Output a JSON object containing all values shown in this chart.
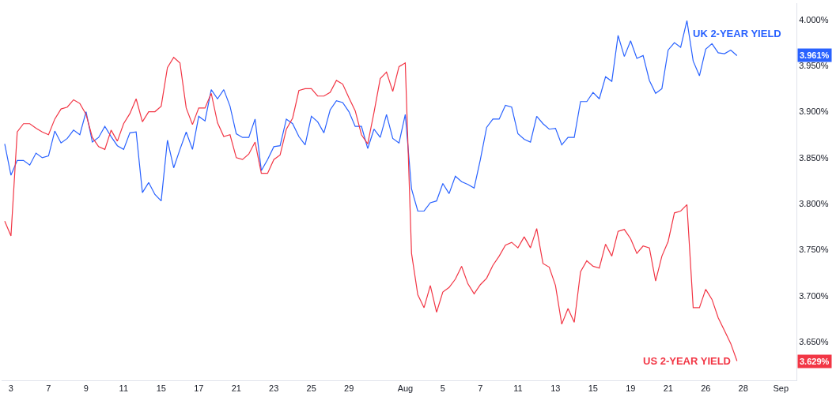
{
  "chart_data": {
    "type": "line",
    "categories": [
      null,
      "3",
      null,
      null,
      null,
      null,
      null,
      "7",
      null,
      null,
      null,
      null,
      null,
      "9",
      null,
      null,
      null,
      null,
      null,
      "11",
      null,
      null,
      null,
      null,
      null,
      "15",
      null,
      null,
      null,
      null,
      null,
      "17",
      null,
      null,
      null,
      null,
      null,
      "21",
      null,
      null,
      null,
      null,
      null,
      "23",
      null,
      null,
      null,
      null,
      null,
      "25",
      null,
      null,
      null,
      null,
      null,
      "29",
      null,
      null,
      null,
      null,
      null,
      null,
      null,
      null,
      "Aug",
      null,
      null,
      null,
      null,
      null,
      "5",
      null,
      null,
      null,
      null,
      null,
      "7",
      null,
      null,
      null,
      null,
      null,
      "11",
      null,
      null,
      null,
      null,
      null,
      "13",
      null,
      null,
      null,
      null,
      null,
      "15",
      null,
      null,
      null,
      null,
      null,
      "19",
      null,
      null,
      null,
      null,
      null,
      "21",
      null,
      null,
      null,
      null,
      null,
      "26",
      null,
      null,
      null,
      null,
      null,
      "28",
      null,
      null,
      null,
      null,
      null,
      "Sep",
      null,
      null
    ],
    "series": [
      {
        "name": "UK 2-YEAR YIELD",
        "color": "#2962ff",
        "values": [
          3.865,
          3.831,
          3.847,
          3.847,
          3.842,
          3.855,
          3.85,
          3.852,
          3.879,
          3.866,
          3.871,
          3.88,
          3.875,
          3.9,
          3.867,
          3.872,
          3.884,
          3.873,
          3.863,
          3.859,
          3.877,
          3.878,
          3.812,
          3.823,
          3.81,
          3.803,
          3.869,
          3.839,
          3.859,
          3.878,
          3.859,
          3.895,
          3.89,
          3.924,
          3.914,
          3.924,
          3.906,
          3.876,
          3.872,
          3.872,
          3.892,
          3.836,
          3.848,
          3.862,
          3.863,
          3.892,
          3.887,
          3.873,
          3.864,
          3.895,
          3.889,
          3.877,
          3.902,
          3.912,
          3.91,
          3.9,
          3.884,
          3.884,
          3.86,
          3.881,
          3.872,
          3.897,
          3.871,
          3.866,
          3.897,
          3.816,
          3.792,
          3.792,
          3.801,
          3.803,
          3.822,
          3.811,
          3.83,
          3.824,
          3.821,
          3.817,
          3.848,
          3.883,
          3.892,
          3.892,
          3.907,
          3.905,
          3.876,
          3.87,
          3.867,
          3.895,
          3.887,
          3.881,
          3.882,
          3.864,
          3.872,
          3.872,
          3.911,
          3.911,
          3.921,
          3.914,
          3.938,
          3.933,
          3.983,
          3.96,
          3.977,
          3.958,
          3.961,
          3.934,
          3.92,
          3.925,
          3.967,
          3.975,
          3.97,
          3.999,
          3.955,
          3.939,
          3.968,
          3.974,
          3.964,
          3.963,
          3.967,
          3.961,
          null,
          null,
          null,
          null,
          null,
          null,
          null,
          null,
          null
        ]
      },
      {
        "name": "US 2-YEAR YIELD",
        "color": "#f23645",
        "values": [
          3.781,
          3.765,
          3.878,
          3.887,
          3.887,
          3.882,
          3.878,
          3.875,
          3.892,
          3.903,
          3.905,
          3.913,
          3.909,
          3.897,
          3.872,
          3.862,
          3.859,
          3.88,
          3.868,
          3.887,
          3.898,
          3.914,
          3.889,
          3.9,
          3.9,
          3.906,
          3.948,
          3.959,
          3.953,
          3.904,
          3.886,
          3.904,
          3.904,
          3.92,
          3.888,
          3.873,
          3.875,
          3.85,
          3.848,
          3.854,
          3.867,
          3.833,
          3.833,
          3.848,
          3.853,
          3.881,
          3.893,
          3.923,
          3.925,
          3.925,
          3.917,
          3.917,
          3.921,
          3.934,
          3.93,
          3.915,
          3.901,
          3.875,
          3.865,
          3.899,
          3.936,
          3.943,
          3.922,
          3.949,
          3.953,
          3.746,
          3.701,
          3.687,
          3.711,
          3.682,
          3.704,
          3.709,
          3.718,
          3.732,
          3.713,
          3.702,
          3.712,
          3.719,
          3.733,
          3.743,
          3.755,
          3.758,
          3.752,
          3.764,
          3.752,
          3.773,
          3.735,
          3.731,
          3.711,
          3.669,
          3.686,
          3.671,
          3.726,
          3.738,
          3.732,
          3.73,
          3.756,
          3.743,
          3.77,
          3.772,
          3.762,
          3.746,
          3.754,
          3.752,
          3.716,
          3.743,
          3.759,
          3.79,
          3.792,
          3.799,
          3.687,
          3.687,
          3.707,
          3.696,
          3.676,
          3.662,
          3.648,
          3.629,
          null,
          null,
          null,
          null,
          null,
          null,
          null,
          null,
          null
        ]
      }
    ],
    "annotations": [
      {
        "text": "3.961%",
        "y": 3.961
      },
      {
        "text": "3.629%",
        "y": 3.629
      }
    ],
    "ylim": [
      3.608,
      4.018
    ],
    "yticks": [
      {
        "value": 3.65,
        "label": "3.650%"
      },
      {
        "value": 3.7,
        "label": "3.700%"
      },
      {
        "value": 3.75,
        "label": "3.750%"
      },
      {
        "value": 3.8,
        "label": "3.800%"
      },
      {
        "value": 3.85,
        "label": "3.850%"
      },
      {
        "value": 3.9,
        "label": "3.900%"
      },
      {
        "value": 3.95,
        "label": "3.950%"
      },
      {
        "value": 4.0,
        "label": "4.000%"
      }
    ],
    "legend": false,
    "marker": "none",
    "line_style": "solid"
  }
}
